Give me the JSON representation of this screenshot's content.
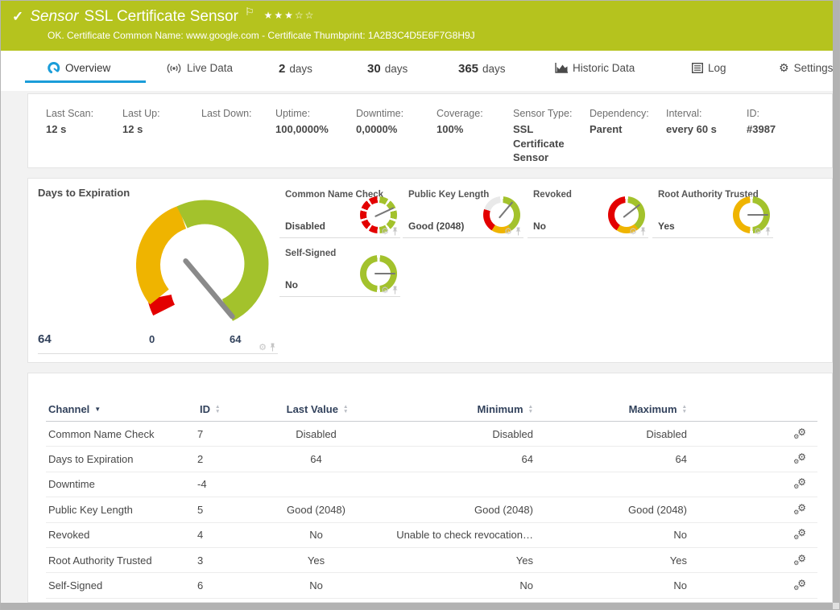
{
  "colors": {
    "header_green": "#b5c31e",
    "accent_blue": "#1b9dd9",
    "gauge_green": "#a3c22c",
    "gauge_yellow": "#efb400",
    "gauge_red": "#e30000",
    "gauge_gray": "#e9e9e9",
    "needle_gray": "#8a8a8a",
    "navy": "#32425c",
    "page_bg": "#f2f2f2"
  },
  "header": {
    "kind_label": "Sensor",
    "title": "SSL Certificate Sensor",
    "rating": {
      "filled": 3,
      "total": 5
    },
    "status_message": "OK. Certificate Common Name: www.google.com - Certificate Thumbprint: 1A2B3C4D5E6F7G8H9J"
  },
  "tabs": [
    {
      "label": "Overview",
      "icon": "gauge",
      "active": true
    },
    {
      "label": "Live Data",
      "icon": "broadcast",
      "active": false
    },
    {
      "number": "2",
      "label": "days",
      "active": false
    },
    {
      "number": "30",
      "label": "days",
      "active": false
    },
    {
      "number": "365",
      "label": "days",
      "active": false
    },
    {
      "label": "Historic Data",
      "icon": "chart",
      "active": false
    },
    {
      "label": "Log",
      "icon": "log",
      "active": false
    },
    {
      "label": "Settings",
      "icon": "gear",
      "active": false
    }
  ],
  "info": [
    {
      "label": "Last Scan:",
      "value": "12 s"
    },
    {
      "label": "Last Up:",
      "value": "12 s"
    },
    {
      "label": "Last Down:",
      "value": ""
    },
    {
      "label": "Uptime:",
      "value": "100,0000%"
    },
    {
      "label": "Downtime:",
      "value": "0,0000%"
    },
    {
      "label": "Coverage:",
      "value": "100%"
    },
    {
      "label": "Sensor Type:",
      "value": "SSL Certificate Sensor"
    },
    {
      "label": "Dependency:",
      "value": "Parent"
    },
    {
      "label": "Interval:",
      "value": "every 60 s"
    },
    {
      "label": "ID:",
      "value": "#3987"
    }
  ],
  "gauges": {
    "primary": {
      "title": "Days to Expiration",
      "value": "64",
      "scale_min": "0",
      "scale_max": "64",
      "needle_deg": 140
    },
    "small": [
      {
        "title": "Common Name Check",
        "value": "Disabled",
        "gauge_type": "cnc",
        "needle_deg": 65
      },
      {
        "title": "Public Key Length",
        "value": "Good (2048)",
        "gauge_type": "pkl",
        "needle_deg": 40
      },
      {
        "title": "Revoked",
        "value": "No",
        "gauge_type": "rev",
        "needle_deg": 52
      },
      {
        "title": "Root Authority Trusted",
        "value": "Yes",
        "gauge_type": "rat",
        "needle_deg": 90
      },
      {
        "title": "Self-Signed",
        "value": "No",
        "gauge_type": "ss",
        "needle_deg": 90
      }
    ],
    "footer_icons": [
      "gear-icon",
      "pin-icon"
    ]
  },
  "table": {
    "columns": [
      "Channel",
      "ID",
      "Last Value",
      "Minimum",
      "Maximum"
    ],
    "sorted_column": "Channel",
    "row_action_icon": "channel-settings-icon",
    "rows": [
      {
        "channel": "Common Name Check",
        "id": "7",
        "last": "Disabled",
        "min": "Disabled",
        "max": "Disabled"
      },
      {
        "channel": "Days to Expiration",
        "id": "2",
        "last": "64",
        "min": "64",
        "max": "64"
      },
      {
        "channel": "Downtime",
        "id": "-4",
        "last": "",
        "min": "",
        "max": ""
      },
      {
        "channel": "Public Key Length",
        "id": "5",
        "last": "Good (2048)",
        "min": "Good (2048)",
        "max": "Good (2048)"
      },
      {
        "channel": "Revoked",
        "id": "4",
        "last": "No",
        "min": "Unable to check revocation…",
        "max": "No"
      },
      {
        "channel": "Root Authority Trusted",
        "id": "3",
        "last": "Yes",
        "min": "Yes",
        "max": "Yes"
      },
      {
        "channel": "Self-Signed",
        "id": "6",
        "last": "No",
        "min": "No",
        "max": "No"
      }
    ]
  }
}
